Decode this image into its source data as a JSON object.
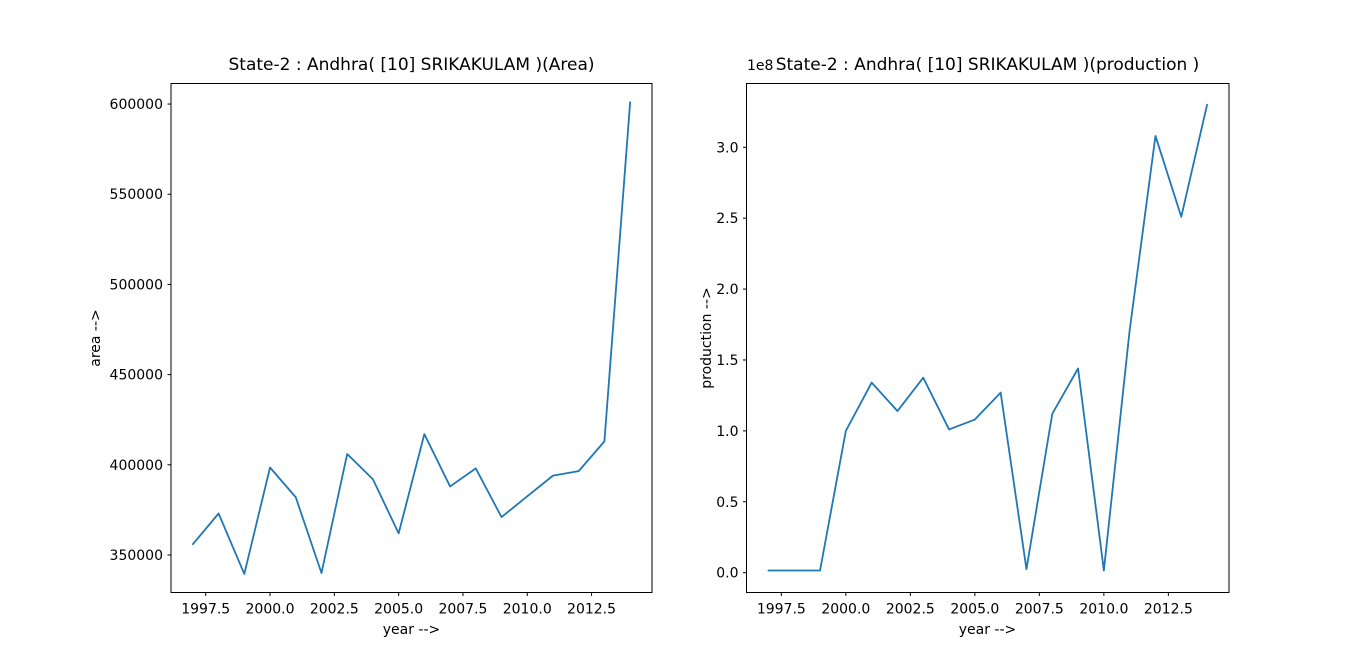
{
  "figure": {
    "background": "#ffffff",
    "text_color": "#000000",
    "spine_color": "#000000",
    "line_color": "#1f77b4"
  },
  "chart_data": [
    {
      "type": "line",
      "title": "State-2 : Andhra( [10] SRIKAKULAM )(Area)",
      "xlabel": "year -->",
      "ylabel": "area -->",
      "offset_text": "",
      "legend": null,
      "grid": false,
      "line_color": "#1f77b4",
      "x": [
        1997,
        1998,
        1999,
        2000,
        2001,
        2002,
        2003,
        2004,
        2005,
        2006,
        2007,
        2008,
        2009,
        2010,
        2011,
        2012,
        2013,
        2014
      ],
      "y": [
        356000,
        373000,
        339500,
        398500,
        382000,
        340000,
        406000,
        392000,
        362000,
        417000,
        388000,
        398000,
        371000,
        382500,
        394000,
        396500,
        413000,
        601000
      ],
      "xlim": [
        1996.15,
        2014.85
      ],
      "ylim": [
        329200,
        611400
      ],
      "xticks": [
        1997.5,
        2000.0,
        2002.5,
        2005.0,
        2007.5,
        2010.0,
        2012.5
      ],
      "xtick_labels": [
        "1997.5",
        "2000.0",
        "2002.5",
        "2005.0",
        "2007.5",
        "2010.0",
        "2012.5"
      ],
      "yticks": [
        350000,
        400000,
        450000,
        500000,
        550000,
        600000
      ],
      "ytick_labels": [
        "350000",
        "400000",
        "450000",
        "500000",
        "550000",
        "600000"
      ]
    },
    {
      "type": "line",
      "title": "State-2 : Andhra( [10] SRIKAKULAM )(production )",
      "xlabel": "year -->",
      "ylabel": "production -->",
      "offset_text": "1e8",
      "legend": null,
      "grid": false,
      "line_color": "#1f77b4",
      "x": [
        1997,
        1998,
        1999,
        2000,
        2001,
        2002,
        2003,
        2004,
        2005,
        2006,
        2007,
        2008,
        2009,
        2010,
        2011,
        2012,
        2013,
        2014
      ],
      "y": [
        1500000,
        1500000,
        1500000,
        100000000,
        134000000,
        114000000,
        137500000,
        101000000,
        108000000,
        127000000,
        2500000,
        112000000,
        144000000,
        1500000,
        171000000,
        308000000,
        251000000,
        330000000
      ],
      "xlim": [
        1996.15,
        2014.85
      ],
      "ylim": [
        -14000000,
        345000000
      ],
      "xticks": [
        1997.5,
        2000.0,
        2002.5,
        2005.0,
        2007.5,
        2010.0,
        2012.5
      ],
      "xtick_labels": [
        "1997.5",
        "2000.0",
        "2002.5",
        "2005.0",
        "2007.5",
        "2010.0",
        "2012.5"
      ],
      "yticks": [
        0,
        50000000,
        100000000,
        150000000,
        200000000,
        250000000,
        300000000
      ],
      "ytick_labels": [
        "0.0",
        "0.5",
        "1.0",
        "1.5",
        "2.0",
        "2.5",
        "3.0"
      ]
    }
  ]
}
